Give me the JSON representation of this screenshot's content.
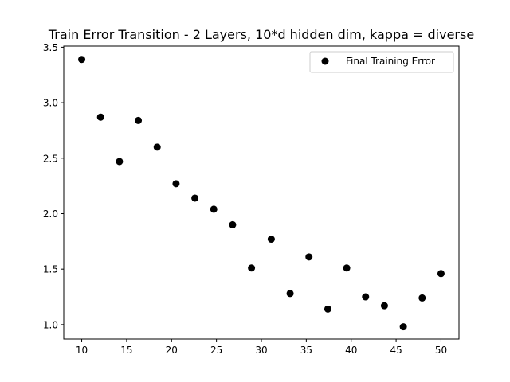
{
  "chart_data": {
    "type": "scatter",
    "title": "Train Error Transition - 2 Layers, 10*d hidden dim, kappa = diverse",
    "xlabel": "",
    "ylabel": "",
    "xlim": [
      8.0,
      52.0
    ],
    "ylim": [
      0.87,
      3.51
    ],
    "x_ticks": [
      10,
      15,
      20,
      25,
      30,
      35,
      40,
      45,
      50
    ],
    "x_tick_labels": [
      "10",
      "15",
      "20",
      "25",
      "30",
      "35",
      "40",
      "45",
      "50"
    ],
    "y_ticks": [
      1.0,
      1.5,
      2.0,
      2.5,
      3.0,
      3.5
    ],
    "y_tick_labels": [
      "1.0",
      "1.5",
      "2.0",
      "2.5",
      "3.0",
      "3.5"
    ],
    "grid": false,
    "legend_position": "top-right",
    "series": [
      {
        "name": "Final Training Error",
        "color": "#000000",
        "marker": "circle",
        "x": [
          10.0,
          12.1,
          14.2,
          16.3,
          18.4,
          20.5,
          22.6,
          24.7,
          26.8,
          28.9,
          31.1,
          33.2,
          35.3,
          37.4,
          39.5,
          41.6,
          43.7,
          45.8,
          47.9,
          50.0
        ],
        "y": [
          3.39,
          2.87,
          2.47,
          2.84,
          2.6,
          2.27,
          2.14,
          2.04,
          1.9,
          1.51,
          1.77,
          1.28,
          1.61,
          1.14,
          1.51,
          1.25,
          1.17,
          0.98,
          1.24,
          1.46
        ]
      }
    ]
  }
}
